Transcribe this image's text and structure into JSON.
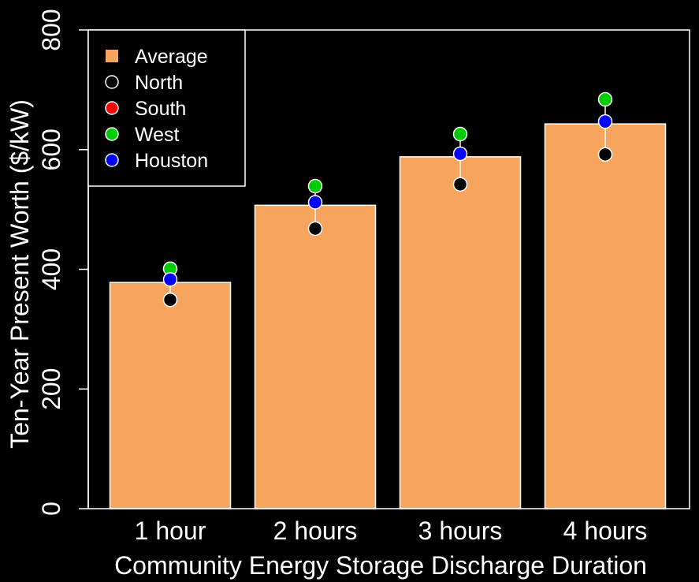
{
  "chart_data": {
    "type": "bar",
    "xlabel": "Community Energy Storage Discharge Duration",
    "ylabel": "Ten-Year Present Worth ($/kW)",
    "ylim": [
      0,
      800
    ],
    "yticks": [
      0,
      200,
      400,
      600,
      800
    ],
    "categories": [
      "1 hour",
      "2 hours",
      "3 hours",
      "4 hours"
    ],
    "grid": false,
    "legend_position": "top-left",
    "series": [
      {
        "name": "Average",
        "type": "bar",
        "color": "#F7A55E",
        "values": [
          378,
          507,
          588,
          643
        ]
      },
      {
        "name": "North",
        "type": "point",
        "color": "#000000",
        "values": [
          349,
          468,
          542,
          592
        ]
      },
      {
        "name": "South",
        "type": "point",
        "color": "#FF0000",
        "values": [
          null,
          null,
          null,
          null
        ]
      },
      {
        "name": "West",
        "type": "point",
        "color": "#00CC00",
        "values": [
          401,
          539,
          626,
          684
        ]
      },
      {
        "name": "Houston",
        "type": "point",
        "color": "#0000FF",
        "values": [
          383,
          512,
          593,
          647
        ]
      }
    ]
  }
}
